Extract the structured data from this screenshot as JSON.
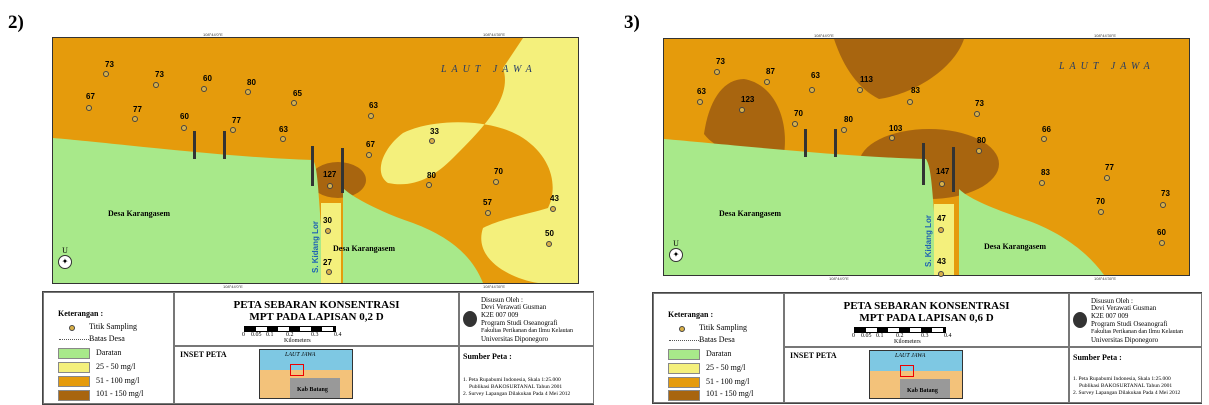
{
  "panels": [
    {
      "label": "2)",
      "sea_label": "LAUT JAWA",
      "village_left": "Desa Karangasem",
      "village_right": "Desa Karangasem",
      "river": "S. Kidang Lor",
      "north": "U",
      "title_line1": "PETA SEBARAN KONSENTRASI",
      "title_line2": "MPT PADA LAPISAN 0,2 D",
      "points": [
        "73",
        "73",
        "60",
        "80",
        "65",
        "67",
        "77",
        "60",
        "77",
        "63",
        "63",
        "33",
        "67",
        "127",
        "80",
        "70",
        "57",
        "43",
        "30",
        "50",
        "27"
      ]
    },
    {
      "label": "3)",
      "sea_label": "LAUT JAWA",
      "village_left": "Desa Karangasem",
      "village_right": "Desa Karangasem",
      "river": "S. Kidang Lor",
      "north": "U",
      "title_line1": "PETA SEBARAN KONSENTRASI",
      "title_line2": "MPT PADA LAPISAN 0,6 D",
      "points": [
        "73",
        "87",
        "63",
        "113",
        "63",
        "123",
        "70",
        "80",
        "83",
        "73",
        "103",
        "80",
        "66",
        "147",
        "83",
        "77",
        "47",
        "70",
        "73",
        "43",
        "60"
      ]
    }
  ],
  "legend": {
    "heading": "Keterangan :",
    "titik": "Titik Sampling",
    "batas": "Batas Desa",
    "daratan": "Daratan",
    "c1": "25 - 50 mg/l",
    "c2": "51 - 100 mg/l",
    "c3": "101 - 150 mg/l",
    "colors": {
      "daratan": "#a8e98a",
      "c1": "#f4f07c",
      "c2": "#e59b0c",
      "c3": "#a8650f"
    }
  },
  "scale": {
    "ticks": [
      "0",
      "0.05",
      "0.1",
      "0.2",
      "0.3",
      "0.4"
    ],
    "unit": "Kilometers"
  },
  "credits": {
    "by": "Disusun Oleh :",
    "name": "Devi Verawati Gusman",
    "nim": "K2E 007 009",
    "prodi": "Program Studi Oseanografi",
    "fak": "Fakultas Perikanan dan Ilmu Kelautan",
    "univ": "Universitas Diponegoro"
  },
  "source": {
    "heading": "Sumber Peta :",
    "s1": "1. Peta Rupabumi Indonesia, Skala 1:25.000",
    "s1b": "Publikasi BAKOSURTANAL Tahun 2001",
    "s2": "2. Survey Lapangan Dilakukan Pada 4 Mei 2012"
  },
  "inset": {
    "heading": "INSET PETA",
    "sea": "LAUT JAWA",
    "region": "Kab Batang"
  }
}
